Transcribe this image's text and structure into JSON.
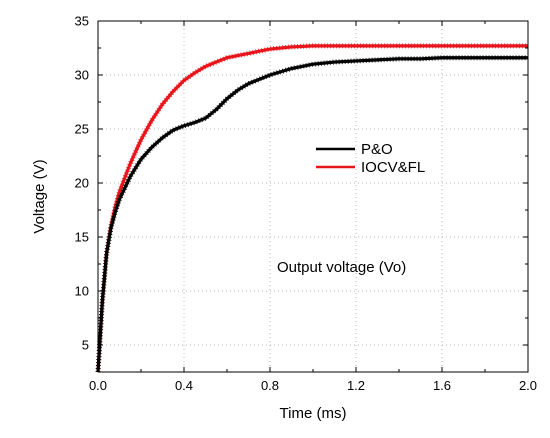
{
  "chart_data": {
    "type": "line",
    "xlabel": "Time (ms)",
    "ylabel": "Voltage (V)",
    "xlim": [
      0,
      2.0
    ],
    "ylim": [
      2.5,
      35
    ],
    "xticks": [
      "0.0",
      "0.4",
      "0.8",
      "1.2",
      "1.6",
      "2.0"
    ],
    "yticks": [
      "5",
      "10",
      "15",
      "20",
      "25",
      "30",
      "35"
    ],
    "grid": true,
    "legend_position": "center-right",
    "annotation": "Output voltage (Vo)",
    "series": [
      {
        "name": "P&O",
        "color": "#000000",
        "x": [
          0,
          0.02,
          0.04,
          0.06,
          0.08,
          0.1,
          0.15,
          0.2,
          0.25,
          0.3,
          0.35,
          0.4,
          0.45,
          0.5,
          0.55,
          0.6,
          0.65,
          0.7,
          0.8,
          0.9,
          1.0,
          1.1,
          1.2,
          1.3,
          1.4,
          1.5,
          1.6,
          1.7,
          1.8,
          1.9,
          2.0
        ],
        "y": [
          2.5,
          9.0,
          13.5,
          15.8,
          17.3,
          18.5,
          20.6,
          22.2,
          23.3,
          24.2,
          24.9,
          25.3,
          25.6,
          26.0,
          26.8,
          27.8,
          28.6,
          29.2,
          30.0,
          30.6,
          31.0,
          31.2,
          31.3,
          31.4,
          31.5,
          31.5,
          31.6,
          31.6,
          31.6,
          31.6,
          31.6
        ]
      },
      {
        "name": "IOCV&FL",
        "color": "#e8151b",
        "x": [
          0,
          0.02,
          0.04,
          0.06,
          0.08,
          0.1,
          0.15,
          0.2,
          0.25,
          0.3,
          0.35,
          0.4,
          0.45,
          0.5,
          0.55,
          0.6,
          0.7,
          0.8,
          0.9,
          1.0,
          1.1,
          1.2,
          1.4,
          1.6,
          1.8,
          2.0
        ],
        "y": [
          2.5,
          9.0,
          13.5,
          16.0,
          17.8,
          19.2,
          21.8,
          24.0,
          25.8,
          27.3,
          28.5,
          29.5,
          30.2,
          30.8,
          31.2,
          31.6,
          32.0,
          32.4,
          32.6,
          32.7,
          32.7,
          32.7,
          32.7,
          32.7,
          32.7,
          32.7
        ]
      }
    ]
  }
}
